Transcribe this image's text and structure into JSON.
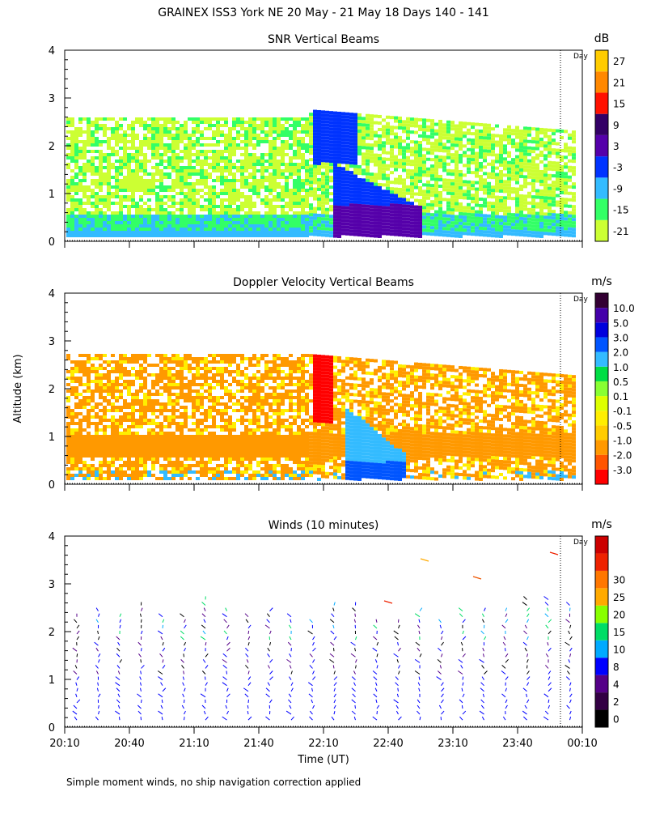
{
  "page": {
    "title": "GRAINEX ISS3 York NE  20 May - 21 May 18 Days 140 - 141",
    "ylabel": "Altitude (km)",
    "xlabel": "Time (UT)",
    "footnote": "Simple moment winds, no ship navigation correction applied",
    "day_marker": "Day"
  },
  "chart_data": [
    {
      "type": "heatmap",
      "title": "SNR Vertical Beams",
      "units": "dB",
      "ylim": [
        0,
        4
      ],
      "yticks": [
        "0",
        "1",
        "2",
        "3",
        "4"
      ],
      "colorbar": {
        "colors": [
          "#ccff33",
          "#33ff66",
          "#33bbff",
          "#0033ff",
          "#5500aa",
          "#330066",
          "#ff1100",
          "#ff8800",
          "#ffcc00"
        ],
        "labels": [
          "-21",
          "-15",
          "-9",
          "-3",
          "3",
          "9",
          "15",
          "21",
          "27"
        ]
      },
      "grid": false
    },
    {
      "type": "heatmap",
      "title": "Doppler Velocity Vertical Beams",
      "units": "m/s",
      "ylim": [
        0,
        4
      ],
      "yticks": [
        "0",
        "1",
        "2",
        "3",
        "4"
      ],
      "colorbar": {
        "colors": [
          "#ff0000",
          "#ff5500",
          "#ff9900",
          "#ffcc00",
          "#ffee00",
          "#ddff00",
          "#88ff33",
          "#00dd44",
          "#33bbff",
          "#0055ff",
          "#0000dd",
          "#4400aa",
          "#330033"
        ],
        "labels": [
          "-3.0",
          "-2.0",
          "-1.0",
          "-0.5",
          "-0.1",
          "0.1",
          "0.5",
          "1.0",
          "2.0",
          "3.0",
          "5.0",
          "10.0"
        ]
      },
      "grid": false
    },
    {
      "type": "scatter",
      "title": "Winds (10 minutes)",
      "units": "m/s",
      "ylim": [
        0,
        4
      ],
      "yticks": [
        "0",
        "1",
        "2",
        "3",
        "4"
      ],
      "xticks": [
        "20:10",
        "20:40",
        "21:10",
        "21:40",
        "22:10",
        "22:40",
        "23:10",
        "23:40",
        "00:10"
      ],
      "colorbar": {
        "colors": [
          "#000000",
          "#330044",
          "#550088",
          "#0000ff",
          "#00aaff",
          "#00dd66",
          "#88ff00",
          "#ffaa00",
          "#ff7700",
          "#ee2200",
          "#cc0000"
        ],
        "labels": [
          "0",
          "2",
          "4",
          "8",
          "10",
          "15",
          "20",
          "25",
          "30"
        ]
      },
      "grid": false
    }
  ]
}
